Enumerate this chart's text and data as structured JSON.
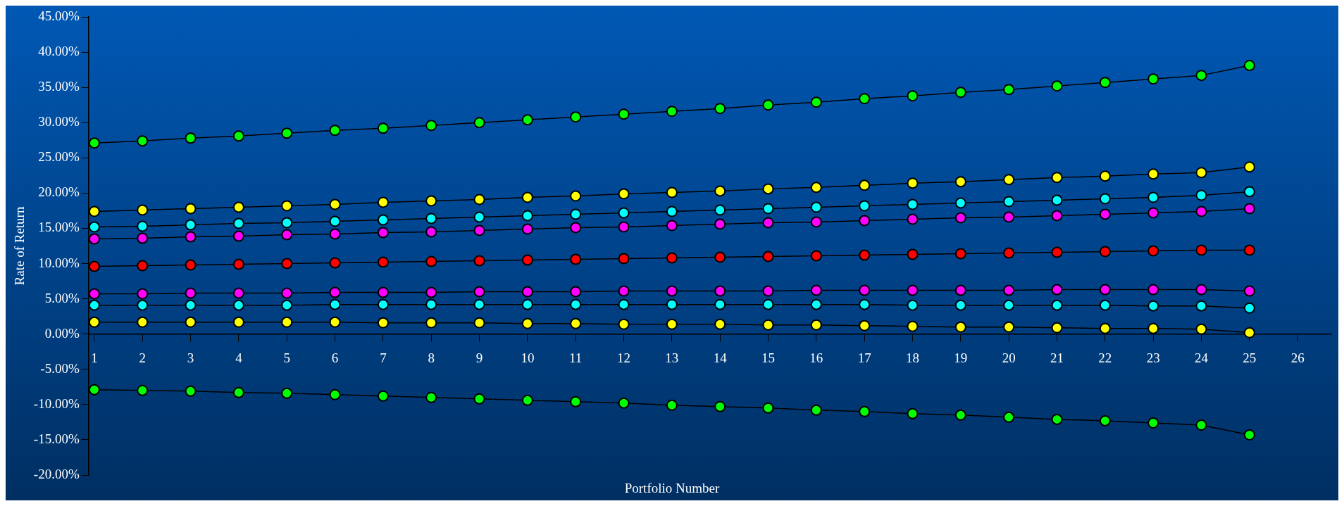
{
  "chart_data": {
    "type": "line",
    "xlabel": "Portfolio Number",
    "ylabel": "Rate of Return",
    "marker": "circle",
    "line_style": "solid",
    "x": [
      1,
      2,
      3,
      4,
      5,
      6,
      7,
      8,
      9,
      10,
      11,
      12,
      13,
      14,
      15,
      16,
      17,
      18,
      19,
      20,
      21,
      22,
      23,
      24,
      25
    ],
    "xlim": [
      0.88,
      26.7
    ],
    "xticks": [
      1,
      2,
      3,
      4,
      5,
      6,
      7,
      8,
      9,
      10,
      11,
      12,
      13,
      14,
      15,
      16,
      17,
      18,
      19,
      20,
      21,
      22,
      23,
      24,
      25,
      26
    ],
    "ylim": [
      -20,
      45
    ],
    "yticks": [
      {
        "value": -20,
        "label": "-20.00%"
      },
      {
        "value": -15,
        "label": "-15.00%"
      },
      {
        "value": -10,
        "label": "-10.00%"
      },
      {
        "value": -5,
        "label": "-5.00%"
      },
      {
        "value": 0,
        "label": "0.00%"
      },
      {
        "value": 5,
        "label": "5.00%"
      },
      {
        "value": 10,
        "label": "10.00%"
      },
      {
        "value": 15,
        "label": "15.00%"
      },
      {
        "value": 20,
        "label": "20.00%"
      },
      {
        "value": 25,
        "label": "25.00%"
      },
      {
        "value": 30,
        "label": "30.00%"
      },
      {
        "value": 35,
        "label": "35.00%"
      },
      {
        "value": 40,
        "label": "40.00%"
      },
      {
        "value": 45,
        "label": "45.00%"
      }
    ],
    "series": [
      {
        "color": "#00ff00",
        "values": [
          27.1,
          27.4,
          27.8,
          28.1,
          28.5,
          28.9,
          29.2,
          29.6,
          30.0,
          30.4,
          30.8,
          31.2,
          31.6,
          32.0,
          32.5,
          32.9,
          33.4,
          33.8,
          34.3,
          34.7,
          35.2,
          35.7,
          36.2,
          36.7,
          38.1
        ]
      },
      {
        "color": "#ffff00",
        "values": [
          17.4,
          17.6,
          17.8,
          18.0,
          18.2,
          18.4,
          18.7,
          18.9,
          19.1,
          19.4,
          19.6,
          19.9,
          20.1,
          20.3,
          20.6,
          20.8,
          21.1,
          21.4,
          21.6,
          21.9,
          22.2,
          22.4,
          22.7,
          22.9,
          23.7
        ]
      },
      {
        "color": "#00ffff",
        "values": [
          15.2,
          15.3,
          15.5,
          15.7,
          15.8,
          16.0,
          16.2,
          16.4,
          16.6,
          16.8,
          17.0,
          17.2,
          17.4,
          17.6,
          17.8,
          18.0,
          18.2,
          18.4,
          18.6,
          18.8,
          19.0,
          19.2,
          19.4,
          19.7,
          20.2
        ]
      },
      {
        "color": "#ff00ff",
        "values": [
          13.5,
          13.6,
          13.8,
          13.9,
          14.1,
          14.2,
          14.4,
          14.5,
          14.7,
          14.9,
          15.1,
          15.2,
          15.4,
          15.6,
          15.8,
          15.9,
          16.1,
          16.3,
          16.5,
          16.6,
          16.8,
          17.0,
          17.2,
          17.4,
          17.8
        ]
      },
      {
        "color": "#ff0000",
        "values": [
          9.6,
          9.7,
          9.8,
          9.9,
          10.0,
          10.1,
          10.2,
          10.3,
          10.4,
          10.5,
          10.6,
          10.7,
          10.8,
          10.9,
          11.0,
          11.1,
          11.2,
          11.3,
          11.4,
          11.5,
          11.6,
          11.7,
          11.8,
          11.9,
          11.9
        ]
      },
      {
        "color": "#ff00ff",
        "values": [
          5.7,
          5.7,
          5.8,
          5.8,
          5.8,
          5.9,
          5.9,
          5.9,
          6.0,
          6.0,
          6.0,
          6.1,
          6.1,
          6.1,
          6.1,
          6.2,
          6.2,
          6.2,
          6.2,
          6.2,
          6.3,
          6.3,
          6.3,
          6.3,
          6.1
        ]
      },
      {
        "color": "#00ffff",
        "values": [
          4.1,
          4.1,
          4.1,
          4.1,
          4.1,
          4.2,
          4.2,
          4.2,
          4.2,
          4.2,
          4.2,
          4.2,
          4.2,
          4.2,
          4.2,
          4.2,
          4.2,
          4.1,
          4.1,
          4.1,
          4.1,
          4.1,
          4.0,
          4.0,
          3.7
        ]
      },
      {
        "color": "#ffff00",
        "values": [
          1.7,
          1.7,
          1.7,
          1.7,
          1.7,
          1.7,
          1.6,
          1.6,
          1.6,
          1.5,
          1.5,
          1.4,
          1.4,
          1.4,
          1.3,
          1.3,
          1.2,
          1.1,
          1.0,
          1.0,
          0.9,
          0.8,
          0.8,
          0.7,
          0.2
        ]
      },
      {
        "color": "#00ff00",
        "values": [
          -7.9,
          -8.0,
          -8.1,
          -8.3,
          -8.4,
          -8.6,
          -8.8,
          -9.0,
          -9.2,
          -9.4,
          -9.6,
          -9.8,
          -10.1,
          -10.3,
          -10.5,
          -10.8,
          -11.0,
          -11.3,
          -11.5,
          -11.8,
          -12.1,
          -12.3,
          -12.6,
          -12.9,
          -14.3
        ]
      }
    ]
  }
}
